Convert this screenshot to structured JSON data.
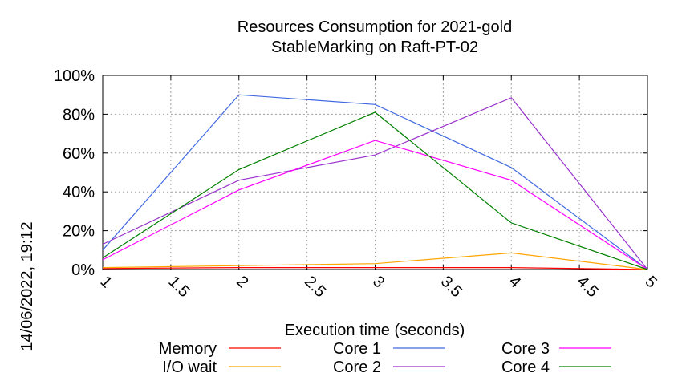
{
  "chart_data": {
    "type": "line",
    "title": [
      "Resources Consumption for 2021-gold",
      "StableMarking on Raft-PT-02"
    ],
    "xlabel": "Execution time (seconds)",
    "ylabel": "",
    "xlim": [
      1,
      5
    ],
    "ylim": [
      0,
      100
    ],
    "x_ticks": [
      "1",
      "1.5",
      "2",
      "2.5",
      "3",
      "3.5",
      "4",
      "4.5",
      "5"
    ],
    "x_tick_values": [
      1,
      1.5,
      2,
      2.5,
      3,
      3.5,
      4,
      4.5,
      5
    ],
    "y_ticks": [
      "0%",
      "20%",
      "40%",
      "60%",
      "80%",
      "100%"
    ],
    "y_tick_values": [
      0,
      20,
      40,
      60,
      80,
      100
    ],
    "grid": true,
    "legend_position": "bottom",
    "timestamp": "14/06/2022, 19:12",
    "series": [
      {
        "name": "Memory",
        "color": "#ff0000",
        "x": [
          1,
          2,
          3,
          4,
          5
        ],
        "y": [
          0.5,
          1,
          1,
          1,
          0
        ]
      },
      {
        "name": "I/O wait",
        "color": "#ffa500",
        "x": [
          1,
          2,
          3,
          4,
          5
        ],
        "y": [
          1,
          2,
          3,
          8.5,
          0
        ]
      },
      {
        "name": "Core 1",
        "color": "#4169e1",
        "x": [
          1,
          2,
          3,
          4,
          5
        ],
        "y": [
          10,
          90,
          85,
          52.5,
          0
        ]
      },
      {
        "name": "Core 2",
        "color": "#9932cc",
        "x": [
          1,
          2,
          3,
          4,
          5
        ],
        "y": [
          13,
          46,
          59,
          88.5,
          0
        ]
      },
      {
        "name": "Core 3",
        "color": "#ff00ff",
        "x": [
          1,
          2,
          3,
          4,
          5
        ],
        "y": [
          5,
          41,
          66.5,
          46,
          0
        ]
      },
      {
        "name": "Core 4",
        "color": "#008000",
        "x": [
          1,
          2,
          3,
          4,
          5
        ],
        "y": [
          6,
          51.5,
          81,
          24,
          0
        ]
      }
    ]
  }
}
